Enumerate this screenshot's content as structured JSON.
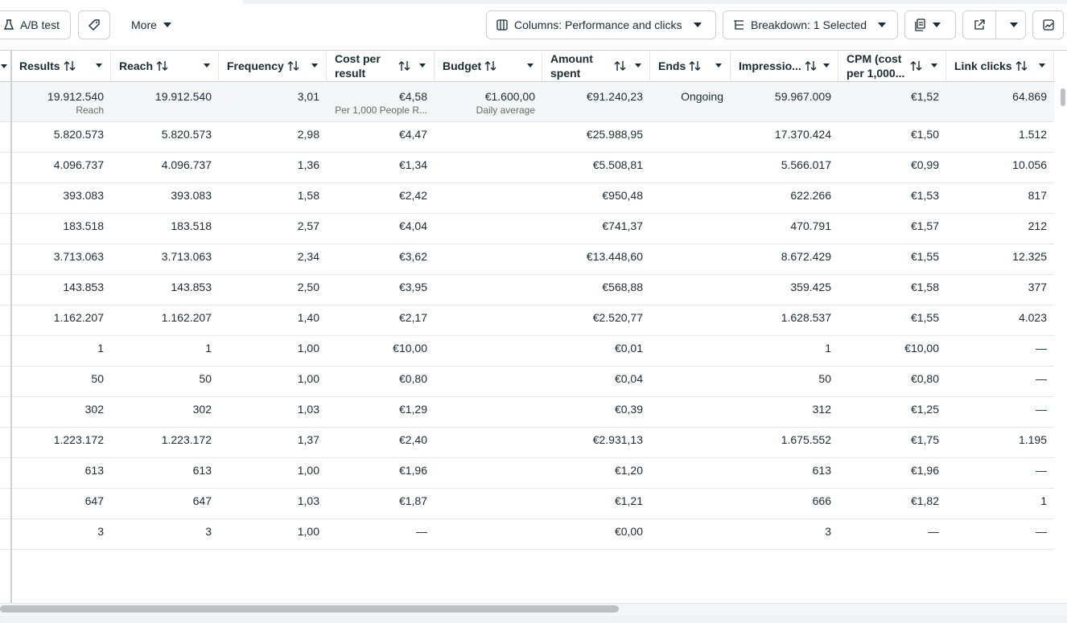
{
  "toolbar": {
    "ab_test": "A/B test",
    "more": "More",
    "columns": "Columns: Performance and clicks",
    "breakdown": "Breakdown: 1 Selected"
  },
  "table": {
    "headers": [
      "Results",
      "Reach",
      "Frequency",
      "Cost per result",
      "Budget",
      "Amount spent",
      "Ends",
      "Impressio...",
      "CPM (cost per 1,000...",
      "Link clicks"
    ],
    "summary": [
      {
        "value": "19.912.540",
        "sub": "Reach"
      },
      {
        "value": "19.912.540"
      },
      {
        "value": "3,01"
      },
      {
        "value": "€4,58",
        "sub": "Per 1,000 People R..."
      },
      {
        "value": "€1.600,00",
        "sub": "Daily average"
      },
      {
        "value": "€91.240,23"
      },
      {
        "value": "Ongoing"
      },
      {
        "value": "59.967.009"
      },
      {
        "value": "€1,52"
      },
      {
        "value": "64.869"
      }
    ],
    "rows": [
      [
        "5.820.573",
        "5.820.573",
        "2,98",
        "€4,47",
        "",
        "€25.988,95",
        "",
        "17.370.424",
        "€1,50",
        "1.512"
      ],
      [
        "4.096.737",
        "4.096.737",
        "1,36",
        "€1,34",
        "",
        "€5.508,81",
        "",
        "5.566.017",
        "€0,99",
        "10.056"
      ],
      [
        "393.083",
        "393.083",
        "1,58",
        "€2,42",
        "",
        "€950,48",
        "",
        "622.266",
        "€1,53",
        "817"
      ],
      [
        "183.518",
        "183.518",
        "2,57",
        "€4,04",
        "",
        "€741,37",
        "",
        "470.791",
        "€1,57",
        "212"
      ],
      [
        "3.713.063",
        "3.713.063",
        "2,34",
        "€3,62",
        "",
        "€13.448,60",
        "",
        "8.672.429",
        "€1,55",
        "12.325"
      ],
      [
        "143.853",
        "143.853",
        "2,50",
        "€3,95",
        "",
        "€568,88",
        "",
        "359.425",
        "€1,58",
        "377"
      ],
      [
        "1.162.207",
        "1.162.207",
        "1,40",
        "€2,17",
        "",
        "€2.520,77",
        "",
        "1.628.537",
        "€1,55",
        "4.023"
      ],
      [
        "1",
        "1",
        "1,00",
        "€10,00",
        "",
        "€0,01",
        "",
        "1",
        "€10,00",
        "—"
      ],
      [
        "50",
        "50",
        "1,00",
        "€0,80",
        "",
        "€0,04",
        "",
        "50",
        "€0,80",
        "—"
      ],
      [
        "302",
        "302",
        "1,03",
        "€1,29",
        "",
        "€0,39",
        "",
        "312",
        "€1,25",
        "—"
      ],
      [
        "1.223.172",
        "1.223.172",
        "1,37",
        "€2,40",
        "",
        "€2.931,13",
        "",
        "1.675.552",
        "€1,75",
        "1.195"
      ],
      [
        "613",
        "613",
        "1,00",
        "€1,96",
        "",
        "€1,20",
        "",
        "613",
        "€1,96",
        "—"
      ],
      [
        "647",
        "647",
        "1,03",
        "€1,87",
        "",
        "€1,21",
        "",
        "666",
        "€1,82",
        "1"
      ],
      [
        "3",
        "3",
        "1,00",
        "—",
        "",
        "€0,00",
        "",
        "3",
        "—",
        "—"
      ]
    ]
  }
}
